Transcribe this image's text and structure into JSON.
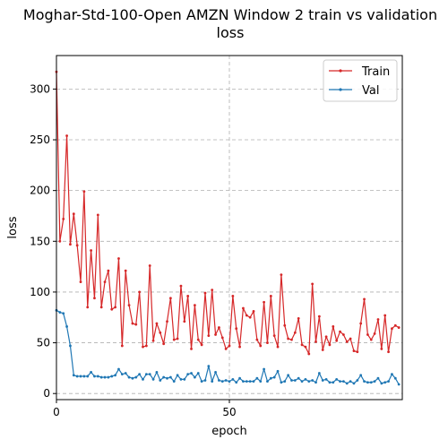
{
  "chart_data": {
    "type": "line",
    "title_lines": [
      "Moghar-Std-100-Open AMZN Window 2 train vs validation",
      "loss"
    ],
    "xlabel": "epoch",
    "ylabel": "loss",
    "xlim": [
      0,
      100
    ],
    "ylim": [
      -6,
      333
    ],
    "xticks": [
      0,
      50
    ],
    "yticks": [
      0,
      50,
      100,
      150,
      200,
      250,
      300
    ],
    "grid": true,
    "legend_position": "top-right",
    "series": [
      {
        "name": "Train",
        "color": "#d62728",
        "values": [
          317,
          150,
          172,
          254,
          147,
          177,
          146,
          110,
          199,
          85,
          141,
          94,
          176,
          85,
          110,
          121,
          83,
          85,
          133,
          47,
          121,
          87,
          69,
          68,
          100,
          46,
          47,
          126,
          52,
          69,
          60,
          49,
          71,
          94,
          53,
          54,
          106,
          71,
          96,
          44,
          87,
          53,
          48,
          99,
          57,
          102,
          58,
          65,
          55,
          44,
          47,
          96,
          64,
          46,
          84,
          77,
          75,
          81,
          53,
          47,
          90,
          50,
          96,
          57,
          46,
          117,
          67,
          54,
          53,
          60,
          74,
          48,
          46,
          39,
          108,
          51,
          76,
          43,
          56,
          48,
          66,
          52,
          61,
          58,
          51,
          54,
          42,
          41,
          69,
          93,
          58,
          53,
          59,
          73,
          44,
          77,
          41,
          64,
          67,
          65
        ]
      },
      {
        "name": "Val",
        "color": "#1f77b4",
        "values": [
          82,
          80,
          79,
          66,
          47,
          18,
          17,
          17,
          17,
          17,
          21,
          17,
          17,
          16,
          16,
          16,
          17,
          18,
          24,
          19,
          20,
          16,
          15,
          16,
          19,
          14,
          19,
          19,
          14,
          21,
          13,
          16,
          15,
          16,
          12,
          18,
          14,
          14,
          19,
          20,
          16,
          20,
          12,
          13,
          27,
          12,
          21,
          13,
          12,
          13,
          12,
          14,
          11,
          15,
          12,
          12,
          12,
          12,
          15,
          12,
          24,
          12,
          15,
          16,
          22,
          11,
          12,
          18,
          13,
          13,
          15,
          12,
          14,
          12,
          13,
          11,
          20,
          13,
          14,
          11,
          11,
          14,
          12,
          12,
          10,
          12,
          10,
          13,
          18,
          12,
          11,
          11,
          12,
          15,
          10,
          11,
          12,
          19,
          15,
          9
        ]
      }
    ]
  }
}
